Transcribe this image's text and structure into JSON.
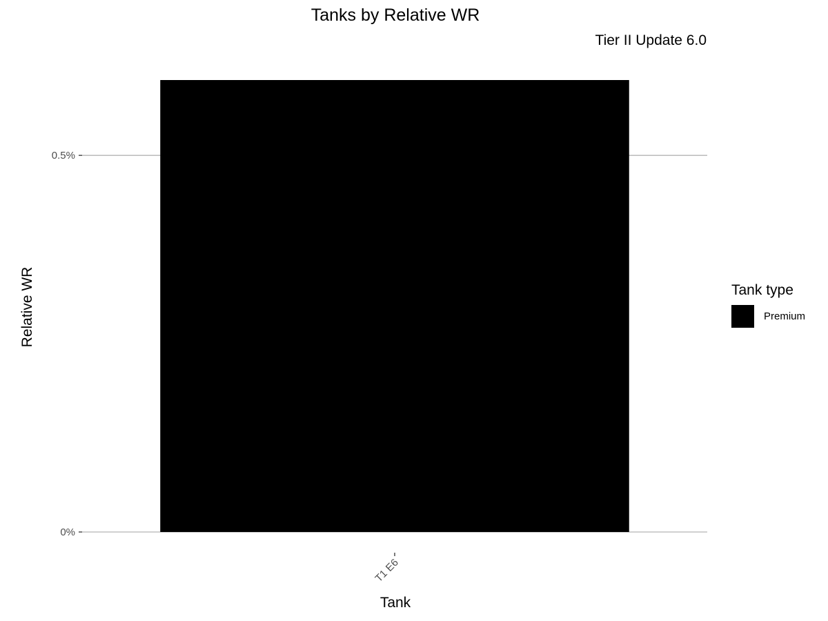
{
  "chart_data": {
    "type": "bar",
    "title": "Tanks by Relative WR",
    "subtitle": "Tier II Update 6.0",
    "xlabel": "Tank",
    "ylabel": "Relative WR",
    "categories": [
      "T1 E6"
    ],
    "series": [
      {
        "name": "Premium",
        "values": [
          0.6
        ],
        "color": "#000000"
      }
    ],
    "ylim": [
      0,
      0.6
    ],
    "yticks": [
      {
        "value": 0,
        "label": "0%"
      },
      {
        "value": 0.5,
        "label": "0.5%"
      }
    ],
    "grid": true,
    "legend": {
      "title": "Tank type",
      "placement": "right"
    }
  }
}
